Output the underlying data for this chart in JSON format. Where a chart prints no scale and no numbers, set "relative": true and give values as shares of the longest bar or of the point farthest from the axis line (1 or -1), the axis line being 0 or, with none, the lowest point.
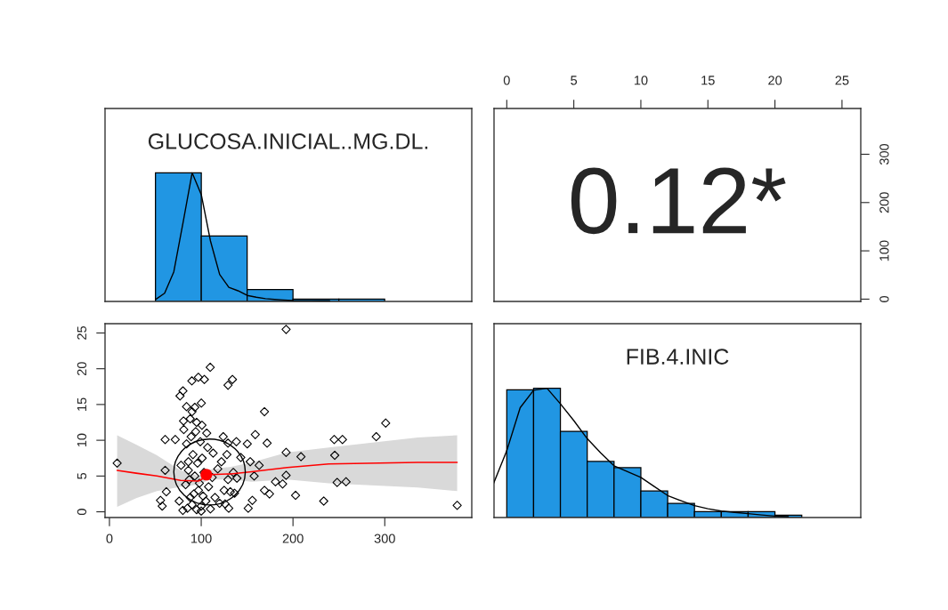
{
  "chart_data": [
    {
      "type": "bar",
      "title": "GLUCOSA.INICIAL..MG.DL.",
      "relative": true,
      "color": "#2196e3",
      "categories": [
        null,
        null,
        null,
        null,
        null
      ],
      "values": [
        1,
        0.509,
        0.092,
        0.018,
        0.018
      ]
    },
    {
      "type": "line",
      "relative": true,
      "color": "#000000",
      "categories": [
        null,
        null,
        null,
        null,
        null,
        null,
        null,
        null,
        null,
        null,
        null,
        null,
        null,
        null,
        null,
        null,
        null,
        null,
        null,
        null
      ],
      "values": [
        0.015,
        0.064,
        0.23,
        0.61,
        1.0,
        0.83,
        0.47,
        0.21,
        0.11,
        0.083,
        0.047,
        0.033,
        0.022,
        0.016,
        0.011,
        0.007,
        0.006,
        0.006,
        0.005,
        0.005
      ]
    },
    {
      "type": "scatter",
      "annotations": [
        "0.12*"
      ],
      "xlim": [
        -0.95,
        26.4
      ],
      "xticks": [
        0,
        5,
        10,
        15,
        20,
        25
      ],
      "ylim": [
        -4.8,
        394.8
      ],
      "yticks": [
        0,
        100,
        200,
        300
      ]
    },
    {
      "type": "scatter",
      "xlim": [
        -4.8,
        394.8
      ],
      "xticks": [
        0,
        100,
        200,
        300
      ],
      "ylim": [
        -0.8,
        26.3
      ],
      "yticks": [
        0,
        5,
        10,
        15,
        20,
        25
      ],
      "series": [
        {
          "type": "scatter",
          "marker": "diamond",
          "color": "#000000",
          "x": [
            192.5,
            109.8,
            89.8,
            96.9,
            103.4,
            129.2,
            134,
            76.9,
            80.1,
            100.1,
            84,
            93,
            80.7,
            100.8,
            168.9,
            301,
            290.7,
            244.9,
            253.9,
            158.9,
            171.8,
            150.2,
            138.3,
            60.7,
            71.7,
            8.4,
            192.5,
            208.7,
            245.5,
            192.5,
            153.4,
            163.1,
            143.1,
            157.7,
            180.9,
            188.7,
            248.1,
            257.8,
            168.9,
            174.4,
            202.8,
            233.5,
            155.7,
            151.2,
            378.9,
            55.6,
            57.5,
            62,
            60.7,
            129.2,
            126,
            131.7,
            136.3,
            129.2,
            138.9,
            80,
            85,
            90,
            95,
            100,
            105,
            110,
            88,
            92,
            97,
            102,
            108,
            115,
            120,
            83,
            87,
            93,
            98,
            103,
            112,
            118,
            125,
            78,
            86,
            91,
            96,
            101,
            107,
            113,
            122,
            84,
            89,
            94,
            99,
            106,
            81,
            88,
            95,
            90,
            86,
            100,
            76,
            130,
            135,
            128,
            124
          ],
          "values": [
            25.5,
            20.2,
            18.3,
            18.8,
            18.5,
            17.7,
            18.5,
            16.2,
            16.9,
            15.2,
            14.7,
            14.6,
            12.7,
            12.1,
            14.0,
            12.4,
            10.5,
            10.1,
            10.1,
            10.8,
            9.6,
            9.5,
            9.8,
            10.1,
            10.1,
            6.8,
            8.3,
            7.7,
            7.9,
            5.1,
            7.0,
            6.5,
            7.6,
            5.0,
            4.2,
            3.9,
            4.1,
            4.2,
            3.0,
            2.5,
            2.3,
            1.5,
            1.6,
            0.5,
            0.9,
            1.6,
            0.8,
            2.8,
            5.8,
            9.6,
            1.1,
            2.8,
            2.6,
            4.5,
            4.7,
            0.2,
            0.5,
            1,
            0.3,
            0.8,
            1.5,
            0.4,
            2,
            2.5,
            3,
            2.2,
            3.5,
            2,
            1.2,
            3.8,
            4.5,
            5,
            4,
            5.5,
            4.8,
            6,
            3,
            6.5,
            7,
            8,
            6.8,
            7.5,
            9,
            8.2,
            7,
            9.5,
            10.5,
            11.2,
            9.8,
            11,
            11.5,
            13,
            12.5,
            14,
            5.8,
            0.1,
            1.5,
            0.5,
            5.5,
            8,
            10.5
          ]
        },
        {
          "type": "line",
          "color": "#ff0000",
          "x": [
            8.4,
            29.1,
            51.7,
            77.5,
            96.9,
            109.8,
            132.4,
            155,
            193.8,
            239,
            336,
            378.9
          ],
          "values": [
            5.8,
            5.4,
            5.0,
            4.4,
            4.3,
            5.2,
            5.3,
            5.6,
            6.2,
            6.7,
            6.9,
            6.9
          ],
          "lower": [
            0.7,
            1.9,
            2.9,
            3.5,
            3.8,
            4.5,
            4.5,
            4.2,
            4.5,
            4.0,
            3.4,
            2.9
          ],
          "upper": [
            10.7,
            9.4,
            7.9,
            5.8,
            5.0,
            5.9,
            6.3,
            6.9,
            8.3,
            9.0,
            10.4,
            10.7
          ]
        },
        {
          "type": "scatter",
          "marker": "circle",
          "color": "#ff0000",
          "x": [
            105.6
          ],
          "values": [
            5.2
          ]
        }
      ]
    },
    {
      "type": "bar",
      "title": "FIB.4.INIC",
      "relative": true,
      "color": "#2196e3",
      "categories": [
        null,
        null,
        null,
        null,
        null,
        null,
        null,
        null,
        null,
        null,
        null
      ],
      "values": [
        0.989,
        1,
        0.667,
        0.434,
        0.386,
        0.205,
        0.11,
        0.046,
        0.046,
        0.046,
        0.018
      ]
    },
    {
      "type": "line",
      "relative": true,
      "color": "#000000",
      "categories": [
        null,
        null,
        null,
        null,
        null,
        null,
        null,
        null,
        null,
        null,
        null,
        null,
        null,
        null,
        null,
        null,
        null,
        null,
        null,
        null,
        null,
        null,
        null
      ],
      "values": [
        0.26,
        0.517,
        0.85,
        0.985,
        1.0,
        0.88,
        0.75,
        0.61,
        0.5,
        0.4,
        0.355,
        0.31,
        0.24,
        0.17,
        0.13,
        0.092,
        0.068,
        0.05,
        0.04,
        0.03,
        0.02,
        0.011,
        0.007
      ]
    }
  ]
}
